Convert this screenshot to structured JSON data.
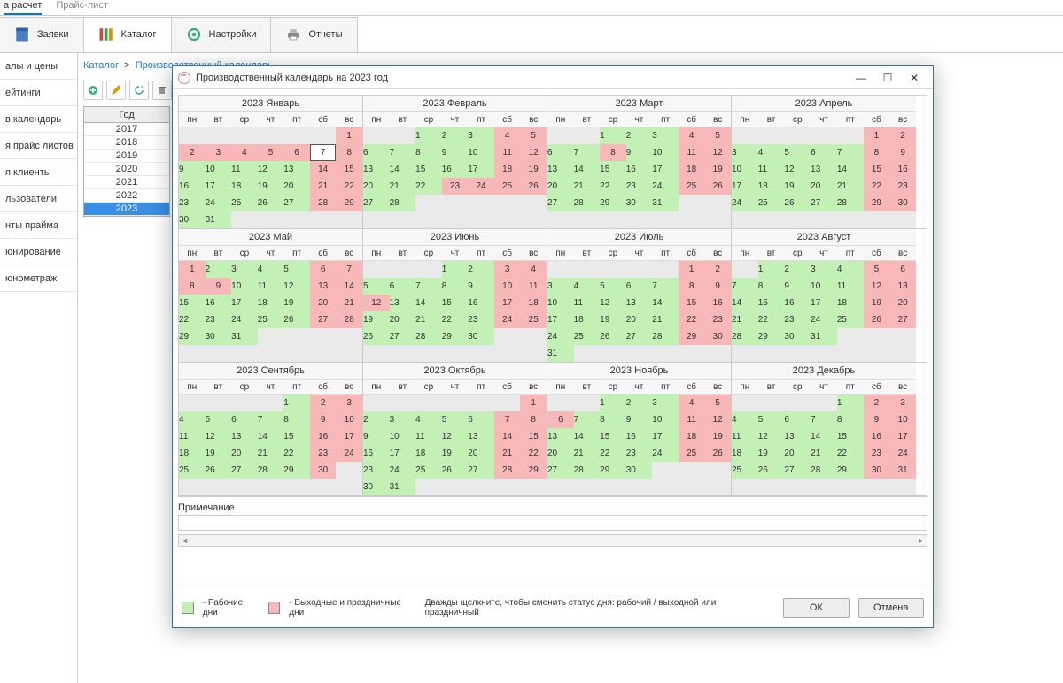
{
  "top_tabs": [
    "а расчет",
    "Прайс-лист"
  ],
  "nav": [
    {
      "label": "Заявки",
      "icon": "book"
    },
    {
      "label": "Каталог",
      "icon": "catalog",
      "active": true
    },
    {
      "label": "Настройки",
      "icon": "gear"
    },
    {
      "label": "Отчеты",
      "icon": "printer"
    }
  ],
  "sidebar": [
    "алы и цены",
    "ейтинги",
    "в.календарь",
    "я прайс листов",
    "я клиенты",
    "льзователи",
    "нты прайма",
    "юнирование",
    "юнометраж"
  ],
  "crumbs": {
    "root": "Каталог",
    "sep": ">",
    "page": "Производственный календарь"
  },
  "year_table": {
    "header": "Год",
    "years": [
      2017,
      2018,
      2019,
      2020,
      2021,
      2022,
      2023
    ],
    "selected": 2023
  },
  "modal": {
    "title": "Производственный календарь на 2023 год",
    "notes_label": "Примечание",
    "legend_work": "- Рабочие дни",
    "legend_off": "- Выходные и праздничные дни",
    "hint": "Дважды щелкните, чтобы сменить статус дня: рабочий / выходной или праздничный",
    "ok": "ОК",
    "cancel": "Отмена",
    "colors": {
      "work": "#c3f0b5",
      "off": "#f8b8b8",
      "empty": "#eaeaea"
    }
  },
  "dow": [
    "пн",
    "вт",
    "ср",
    "чт",
    "пт",
    "сб",
    "вс"
  ],
  "months": [
    {
      "name": "2023 Январь",
      "start": 6,
      "days": 31,
      "off": [
        1,
        2,
        3,
        4,
        5,
        6,
        7,
        8,
        14,
        15,
        21,
        22,
        28,
        29
      ],
      "today": 7
    },
    {
      "name": "2023 Февраль",
      "start": 2,
      "days": 28,
      "off": [
        4,
        5,
        11,
        12,
        18,
        19,
        23,
        24,
        25,
        26
      ]
    },
    {
      "name": "2023 Март",
      "start": 2,
      "days": 31,
      "off": [
        4,
        5,
        8,
        11,
        12,
        18,
        19,
        25,
        26
      ]
    },
    {
      "name": "2023 Апрель",
      "start": 5,
      "days": 30,
      "off": [
        1,
        2,
        8,
        9,
        15,
        16,
        22,
        23,
        29,
        30
      ]
    },
    {
      "name": "2023 Май",
      "start": 0,
      "days": 31,
      "off": [
        1,
        6,
        7,
        8,
        9,
        13,
        14,
        20,
        21,
        27,
        28
      ]
    },
    {
      "name": "2023 Июнь",
      "start": 3,
      "days": 30,
      "off": [
        3,
        4,
        10,
        11,
        12,
        17,
        18,
        24,
        25
      ]
    },
    {
      "name": "2023 Июль",
      "start": 5,
      "days": 31,
      "off": [
        1,
        2,
        8,
        9,
        15,
        16,
        22,
        23,
        29,
        30
      ]
    },
    {
      "name": "2023 Август",
      "start": 1,
      "days": 31,
      "off": [
        5,
        6,
        12,
        13,
        19,
        20,
        26,
        27
      ]
    },
    {
      "name": "2023 Сентябрь",
      "start": 4,
      "days": 30,
      "off": [
        2,
        3,
        9,
        10,
        16,
        17,
        23,
        24,
        30
      ]
    },
    {
      "name": "2023 Октябрь",
      "start": 6,
      "days": 31,
      "off": [
        1,
        7,
        8,
        14,
        15,
        21,
        22,
        28,
        29
      ]
    },
    {
      "name": "2023 Ноябрь",
      "start": 2,
      "days": 30,
      "off": [
        4,
        5,
        6,
        11,
        12,
        18,
        19,
        25,
        26
      ]
    },
    {
      "name": "2023 Декабрь",
      "start": 4,
      "days": 31,
      "off": [
        2,
        3,
        9,
        10,
        16,
        17,
        23,
        24,
        30,
        31
      ]
    }
  ]
}
